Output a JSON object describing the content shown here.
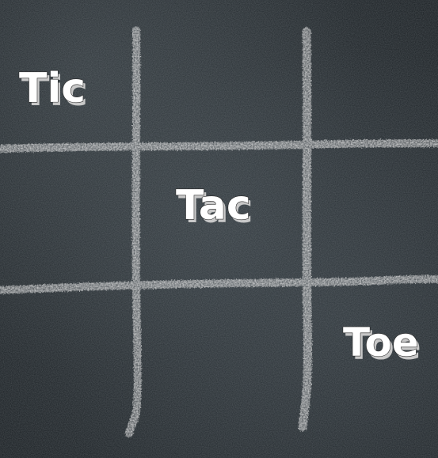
{
  "board": {
    "background_color": "#1e2428",
    "chalk_color": "#dcdcdc"
  },
  "words": {
    "tic": "Tic",
    "tac": "Tac",
    "toe": "Toe"
  }
}
